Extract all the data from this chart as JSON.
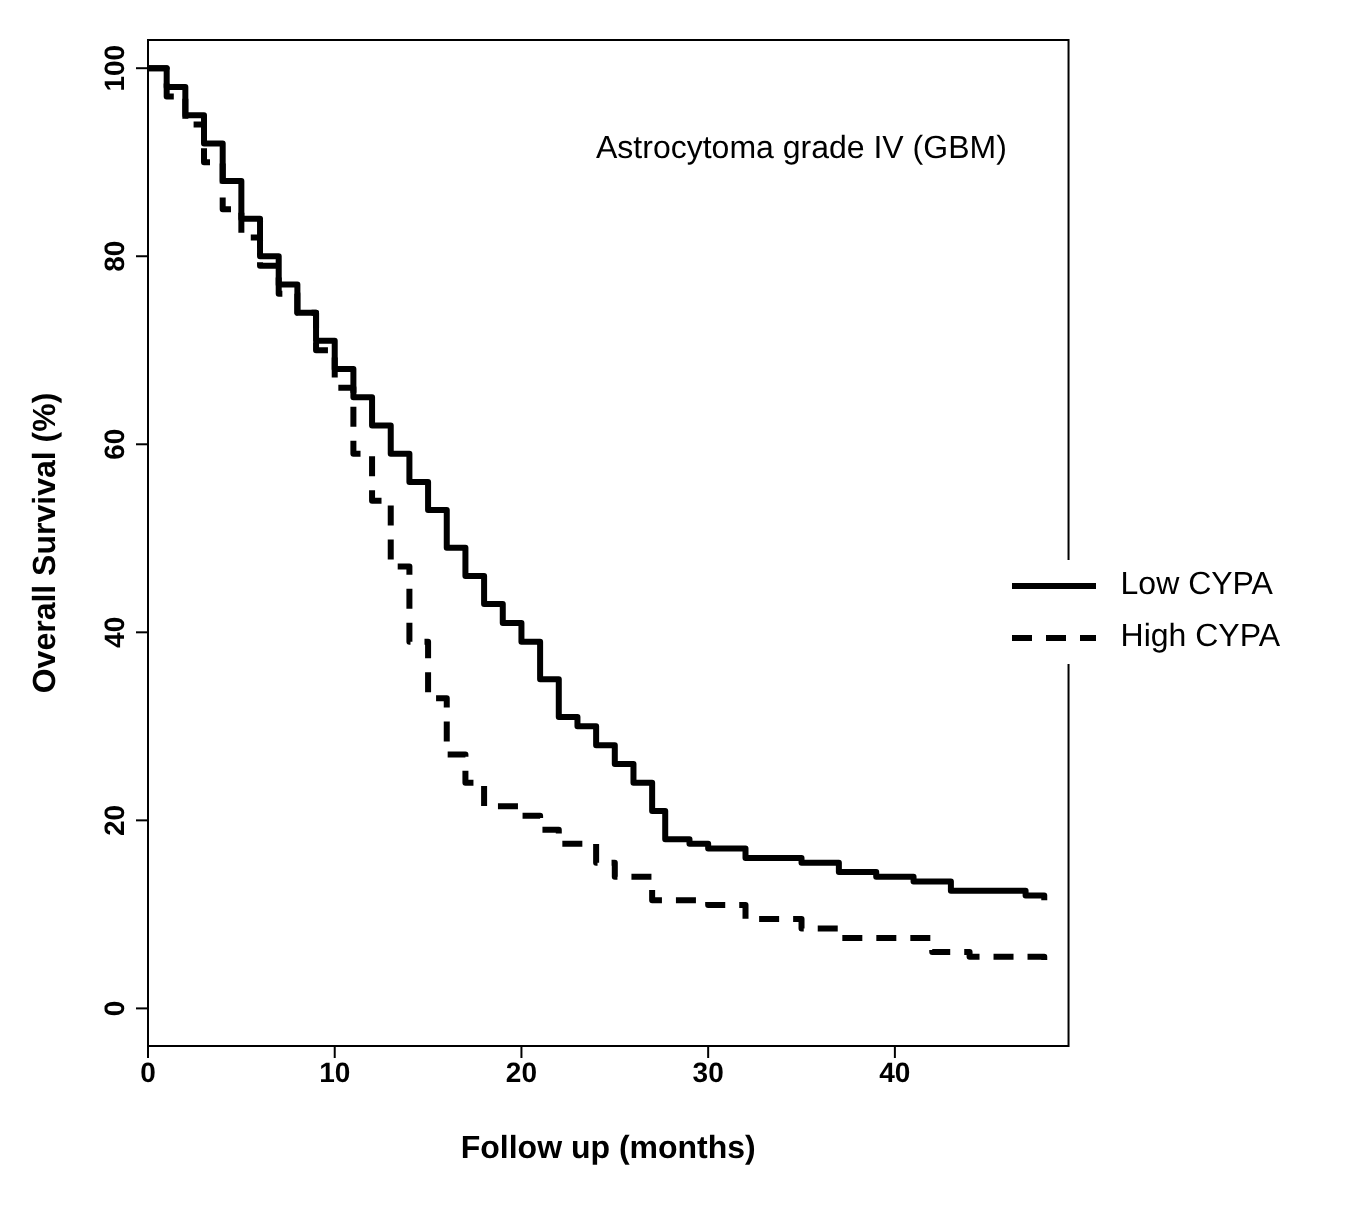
{
  "chart_data": {
    "type": "step",
    "title": "Astrocytoma grade IV (GBM)",
    "xlabel": "Follow up (months)",
    "ylabel": "Overall Survival (%)",
    "xlim": [
      0,
      49.3
    ],
    "xticks": [
      0,
      10,
      20,
      30,
      40
    ],
    "ylim": [
      -4,
      103
    ],
    "yticks": [
      0,
      20,
      40,
      60,
      80,
      100
    ],
    "grid": false,
    "legend": "right",
    "marker": "none",
    "series": [
      {
        "name": "Low CYPA",
        "color": "#000000",
        "line_style": "solid",
        "x": [
          0,
          1,
          2,
          3,
          4,
          5,
          6,
          7,
          8,
          9,
          10,
          11,
          12,
          13,
          14,
          15,
          16,
          17,
          18,
          19,
          20,
          21,
          22,
          23,
          24,
          25,
          26,
          27,
          27.7,
          29,
          30,
          32,
          35,
          37,
          39,
          41,
          43,
          45,
          47,
          48
        ],
        "values": [
          100,
          98,
          95,
          92,
          88,
          84,
          80,
          77,
          74,
          71,
          68,
          65,
          62,
          59,
          56,
          53,
          49,
          46,
          43,
          41,
          39,
          35,
          31,
          30,
          28,
          26,
          24,
          21,
          18,
          17.5,
          17,
          16,
          15.5,
          14.5,
          14,
          13.5,
          12.5,
          12.5,
          12,
          11.5
        ]
      },
      {
        "name": "High CYPA",
        "color": "#000000",
        "line_style": "dashed",
        "x": [
          0,
          1,
          2,
          3,
          4,
          5,
          6,
          7,
          8,
          9,
          10,
          11,
          12,
          13,
          14,
          15,
          16,
          17,
          18,
          20,
          21,
          22,
          24,
          25,
          27,
          30,
          32,
          35,
          37,
          42,
          44,
          48
        ],
        "values": [
          100,
          97,
          94,
          90,
          85,
          82,
          79,
          76,
          74,
          70,
          66,
          59,
          54,
          47,
          39,
          33,
          27,
          24,
          21.5,
          20.5,
          19,
          17.5,
          15.5,
          14,
          11.5,
          11,
          9.5,
          8.5,
          7.5,
          6,
          5.5,
          4.5
        ]
      }
    ]
  }
}
